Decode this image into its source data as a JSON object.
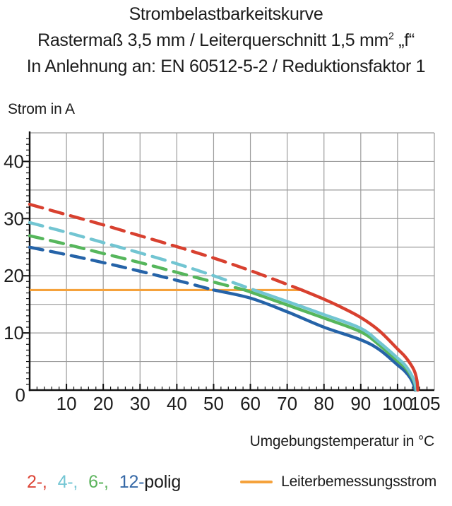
{
  "title": {
    "line1": "Strombelastbarkeitskurve",
    "line2_pre": "Rastermaß 3,5 mm / Leiterquerschnitt 1,5 mm",
    "line2_sup": "2",
    "line2_post": " „f“",
    "line3": "In Anlehnung an: EN 60512-5-2 / Reduktionsfaktor 1"
  },
  "legend": {
    "poles": [
      {
        "label": "2-,",
        "color": "#DC4537"
      },
      {
        "label": "4-,",
        "color": "#74C6D4"
      },
      {
        "label": "6-,",
        "color": "#5BB35C"
      },
      {
        "label": "12-",
        "color": "#3568A6"
      }
    ],
    "poles_suffix": "polig",
    "rated_label": "Leiterbemessungsstrom"
  },
  "colors": {
    "red": "#D8402F",
    "cyan": "#72C5D2",
    "green": "#56B65C",
    "blue": "#2563A8",
    "orange": "#F5A23C",
    "grid": "#9C9C9C",
    "axis": "#111111",
    "text": "#1C1C1C"
  },
  "chart_data": {
    "type": "line",
    "title": "Strombelastbarkeitskurve",
    "subtitle": "Rastermaß 3,5 mm / Leiterquerschnitt 1,5 mm² „f“",
    "standard": "In Anlehnung an: EN 60512-5-2 / Reduktionsfaktor 1",
    "xlabel": "Umgebungstemperatur in °C",
    "ylabel": "Strom in A",
    "xlim": [
      0,
      110
    ],
    "ylim": [
      0,
      45
    ],
    "grid": true,
    "x_grid_step": 10,
    "y_grid_step": 5,
    "x_minor_tick_step": 2,
    "y_minor_tick_step": 1,
    "origin_label": "0",
    "x_ticks": [
      10,
      20,
      30,
      40,
      50,
      60,
      70,
      80,
      90,
      100,
      105
    ],
    "y_ticks": [
      10,
      20,
      30,
      40
    ],
    "rated_current": {
      "name": "Leiterbemessungsstrom",
      "value": 17.5,
      "x_range": [
        0,
        74
      ],
      "color": "#F5A23C"
    },
    "series": [
      {
        "name": "12-polig",
        "color": "#2563A8",
        "dashed": [
          [
            0,
            25.0
          ],
          [
            10,
            23.7
          ],
          [
            20,
            22.3
          ],
          [
            30,
            20.8
          ],
          [
            40,
            19.2
          ],
          [
            50,
            17.5
          ]
        ],
        "solid": [
          [
            50,
            17.5
          ],
          [
            60,
            16.1
          ],
          [
            70,
            13.7
          ],
          [
            80,
            11.0
          ],
          [
            90,
            8.8
          ],
          [
            95,
            7.1
          ],
          [
            100,
            4.4
          ],
          [
            102,
            3.3
          ],
          [
            103.5,
            2.1
          ],
          [
            104.4,
            0.9
          ],
          [
            104.8,
            0
          ]
        ]
      },
      {
        "name": "6-polig",
        "color": "#56B65C",
        "dashed": [
          [
            0,
            27.0
          ],
          [
            10,
            25.5
          ],
          [
            20,
            23.9
          ],
          [
            30,
            22.3
          ],
          [
            40,
            20.6
          ],
          [
            50,
            18.9
          ],
          [
            58.5,
            17.5
          ]
        ],
        "solid": [
          [
            58.5,
            17.5
          ],
          [
            70,
            14.9
          ],
          [
            80,
            12.6
          ],
          [
            90,
            10.2
          ],
          [
            95,
            7.9
          ],
          [
            100,
            5.1
          ],
          [
            102,
            4.0
          ],
          [
            103.5,
            2.7
          ],
          [
            104.6,
            1.3
          ],
          [
            105.0,
            0
          ]
        ]
      },
      {
        "name": "4-polig",
        "color": "#72C5D2",
        "dashed": [
          [
            0,
            29.3
          ],
          [
            10,
            27.6
          ],
          [
            20,
            25.8
          ],
          [
            30,
            24.0
          ],
          [
            40,
            22.1
          ],
          [
            50,
            20.0
          ],
          [
            61,
            17.5
          ]
        ],
        "solid": [
          [
            61,
            17.5
          ],
          [
            70,
            15.5
          ],
          [
            80,
            13.2
          ],
          [
            90,
            10.8
          ],
          [
            95,
            8.4
          ],
          [
            100,
            5.6
          ],
          [
            102,
            4.4
          ],
          [
            103.5,
            3.0
          ],
          [
            104.6,
            1.5
          ],
          [
            105.1,
            0
          ]
        ]
      },
      {
        "name": "2-polig",
        "color": "#D8402F",
        "dashed": [
          [
            0,
            32.5
          ],
          [
            10,
            30.7
          ],
          [
            20,
            28.9
          ],
          [
            30,
            27.0
          ],
          [
            40,
            25.1
          ],
          [
            50,
            23.1
          ],
          [
            60,
            20.9
          ],
          [
            70,
            18.5
          ],
          [
            74,
            17.5
          ]
        ],
        "solid": [
          [
            74,
            17.5
          ],
          [
            80,
            15.9
          ],
          [
            85,
            14.4
          ],
          [
            90,
            12.7
          ],
          [
            95,
            10.4
          ],
          [
            100,
            7.2
          ],
          [
            102,
            5.9
          ],
          [
            103.5,
            4.6
          ],
          [
            104.6,
            3.3
          ],
          [
            105.3,
            1.6
          ],
          [
            105.5,
            0
          ]
        ]
      }
    ]
  }
}
